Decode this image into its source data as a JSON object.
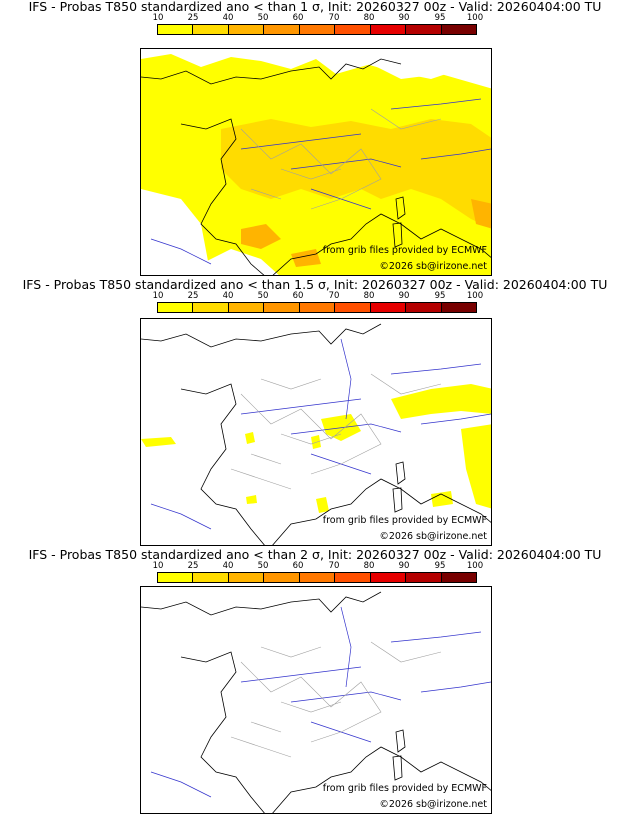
{
  "panels": [
    {
      "title": "IFS - Probas T850  standardized ano < than 1 σ, Init: 20260327 00z - Valid: 20260404:00 TU",
      "credit_source": "from grib files provided by ECMWF",
      "credit_copyright": "©2026 sb@irizone.net"
    },
    {
      "title": "IFS - Probas T850  standardized ano < than 1.5 σ, Init: 20260327 00z - Valid: 20260404:00 TU",
      "credit_source": "from grib files provided by ECMWF",
      "credit_copyright": "©2026 sb@irizone.net"
    },
    {
      "title": "IFS - Probas T850  standardized ano < than 2 σ, Init: 20260327 00z - Valid: 20260404:00 TU",
      "credit_source": "from grib files provided by ECMWF",
      "credit_copyright": "©2026 sb@irizone.net"
    }
  ],
  "scale": {
    "labels": [
      "10",
      "25",
      "40",
      "50",
      "60",
      "70",
      "80",
      "90",
      "95",
      "100"
    ],
    "colors": [
      "#ffff00",
      "#ffdc00",
      "#ffb400",
      "#ff9600",
      "#ff7800",
      "#ff5000",
      "#e60000",
      "#b40000",
      "#780000"
    ]
  },
  "colors": {
    "coast": "#000000",
    "rivers": "#3333cc",
    "borders": "#a0a0a0",
    "prob_low": "#ffff00",
    "prob_mid": "#ffdc00",
    "prob_high": "#ffb400"
  }
}
